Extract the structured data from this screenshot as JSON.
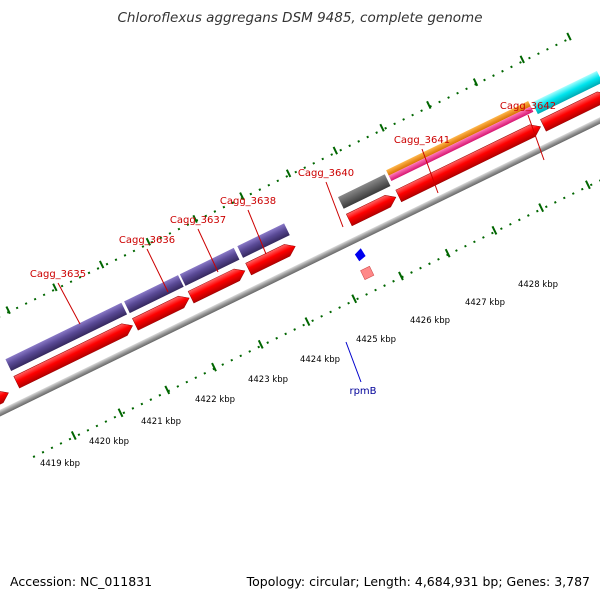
{
  "title": "Chloroflexus aggregans DSM 9485, complete genome",
  "footer": {
    "accession": "Accession: NC_011831",
    "summary": "Topology: circular; Length: 4,684,931 bp; Genes: 3,787"
  },
  "colors": {
    "cds_red": "#ff0000",
    "cds_purple": "#5a4a96",
    "orange": "#ff8c00",
    "magenta": "#ff3399",
    "cyan": "#00e5ee",
    "gray_feature": "#5c5c5c",
    "backbone": "#999999",
    "tick_green": "#006600",
    "label_red": "#cc0000",
    "label_blue": "#0000cc"
  },
  "gene_labels": [
    "Cagg_3635",
    "Cagg_3636",
    "Cagg_3637",
    "Cagg_3638",
    "Cagg_3640",
    "Cagg_3641",
    "Cagg_3642"
  ],
  "kbp_labels": [
    "4419 kbp",
    "4420 kbp",
    "4421 kbp",
    "4422 kbp",
    "4423 kbp",
    "4424 kbp",
    "4425 kbp",
    "4426 kbp",
    "4427 kbp",
    "4428 kbp"
  ],
  "rna_label": "rpmB"
}
